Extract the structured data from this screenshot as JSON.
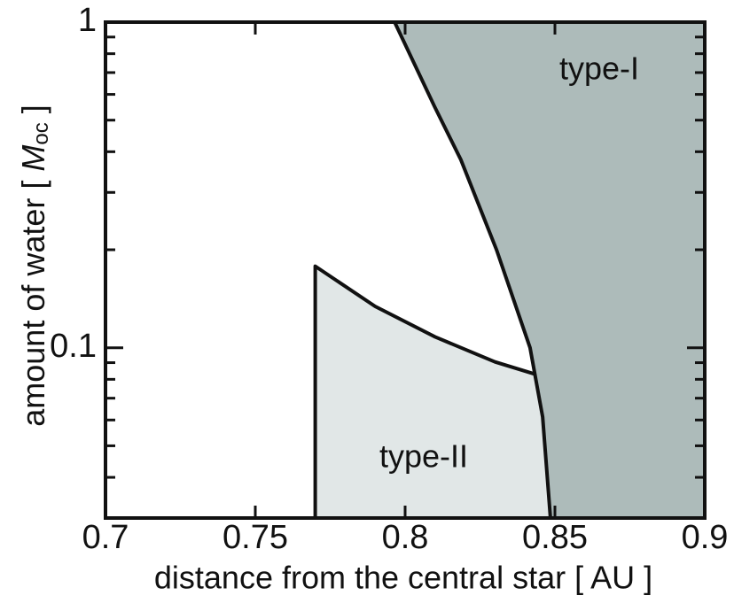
{
  "chart_data": {
    "type": "area",
    "xlabel": "distance from the central star [ AU ]",
    "ylabel": [
      "amount of water [ ",
      "M",
      "oc",
      " ]"
    ],
    "xlim": [
      0.7,
      0.9
    ],
    "xticks": [
      0.7,
      0.75,
      0.8,
      0.85,
      0.9
    ],
    "ylim": [
      0.03,
      1
    ],
    "yticks": [
      0.1,
      1
    ],
    "yminor_ticks": [
      0.04,
      0.05,
      0.06,
      0.07,
      0.08,
      0.09,
      0.2,
      0.3,
      0.4,
      0.5,
      0.6,
      0.7,
      0.8,
      0.9
    ],
    "ylog": true,
    "series": [
      {
        "name": "type-I",
        "color": "#adbbba",
        "x": [
          0.7965,
          0.8098,
          0.8186,
          0.8305,
          0.8417,
          0.8459,
          0.8485
        ],
        "y": [
          1,
          0.551,
          0.378,
          0.2,
          0.1,
          0.0613,
          0.03
        ]
      },
      {
        "name": "type-II",
        "color": "#e1e7e7",
        "x": [
          0.77,
          0.77,
          0.79,
          0.81,
          0.83,
          0.8435
        ],
        "y": [
          0.03,
          0.178,
          0.134,
          0.108,
          0.0905,
          0.0829
        ]
      }
    ]
  }
}
